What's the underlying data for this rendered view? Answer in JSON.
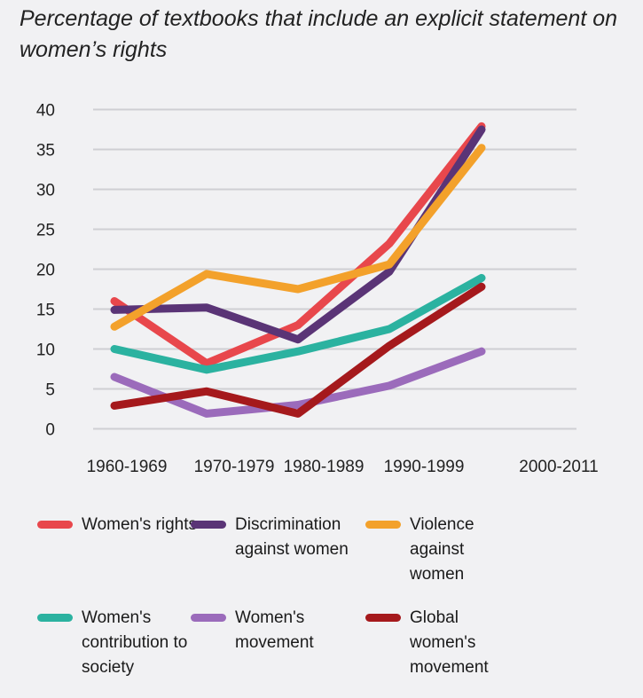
{
  "chart_data": {
    "type": "line",
    "title": "Percentage of textbooks that include an explicit statement on women’s rights",
    "xlabel": "",
    "ylabel": "",
    "categories": [
      "1960-1969",
      "1970-1979",
      "1980-1989",
      "1990-1999",
      "2000-2011"
    ],
    "ylim": [
      0,
      40
    ],
    "yticks": [
      0,
      5,
      10,
      15,
      20,
      25,
      30,
      35,
      40
    ],
    "grid": true,
    "legend_position": "bottom",
    "series": [
      {
        "name": "Women's rights",
        "color": "#e8474c",
        "values": [
          16,
          8.2,
          13,
          23.2,
          37.9
        ]
      },
      {
        "name": "Discrimination against women",
        "color": "#5a3476",
        "values": [
          14.9,
          15.2,
          11.2,
          19.7,
          37.5
        ]
      },
      {
        "name": "Violence against women",
        "color": "#f3a12b",
        "values": [
          12.8,
          19.4,
          17.5,
          20.6,
          35.2
        ]
      },
      {
        "name": "Women's contribution to society",
        "color": "#2bb2a0",
        "values": [
          10,
          7.4,
          9.7,
          12.5,
          18.9
        ]
      },
      {
        "name": "Women's movement",
        "color": "#9b6bbb",
        "values": [
          6.5,
          1.9,
          3.0,
          5.4,
          9.7
        ]
      },
      {
        "name": "Global women's movement",
        "color": "#a5191c",
        "values": [
          2.9,
          4.7,
          1.9,
          10.4,
          17.8
        ]
      }
    ]
  }
}
